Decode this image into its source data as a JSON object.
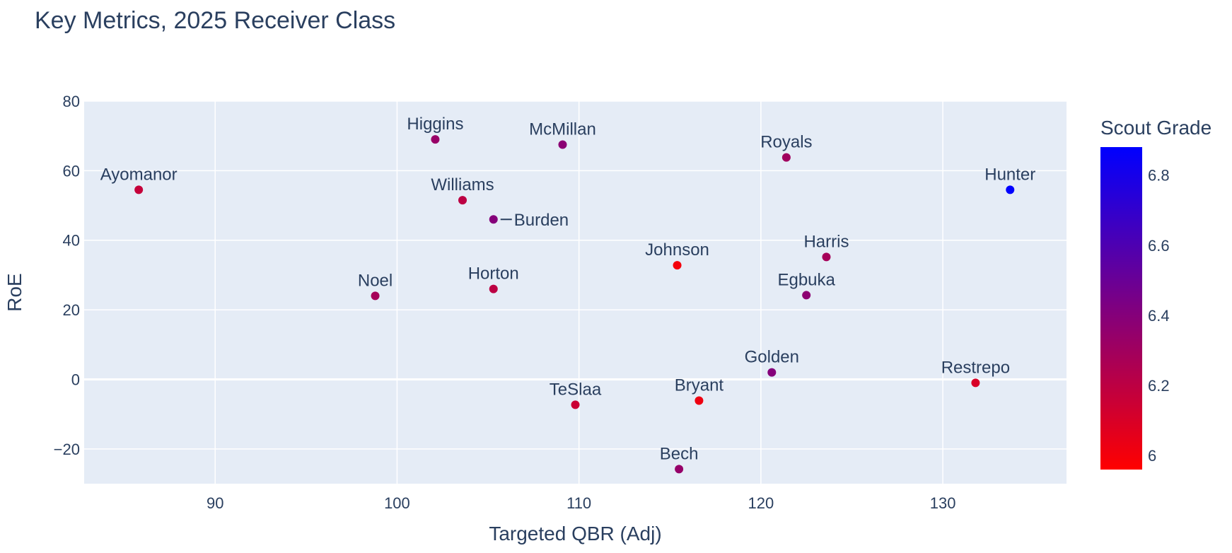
{
  "chart_data": {
    "type": "scatter",
    "title": "Key Metrics, 2025 Receiver Class",
    "xlabel": "Targeted QBR (Adj)",
    "ylabel": "RoE",
    "xlim": [
      82.8,
      136.8
    ],
    "ylim": [
      -30,
      80
    ],
    "x_ticks": [
      90,
      100,
      110,
      120,
      130
    ],
    "y_ticks": [
      -20,
      0,
      20,
      40,
      60,
      80
    ],
    "grid": true,
    "colorbar": {
      "title": "Scout Grade",
      "range": [
        5.96,
        6.88
      ],
      "ticks": [
        6,
        6.2,
        6.4,
        6.6,
        6.8
      ],
      "color_low": "#ff0000",
      "color_high": "#0000ff"
    },
    "points": [
      {
        "label": "Ayomanor",
        "x": 85.8,
        "y": 54.5,
        "grade": 6.17,
        "label_pos": "top"
      },
      {
        "label": "Higgins",
        "x": 102.1,
        "y": 69,
        "grade": 6.33,
        "label_pos": "top"
      },
      {
        "label": "McMillan",
        "x": 109.1,
        "y": 67.5,
        "grade": 6.38,
        "label_pos": "top"
      },
      {
        "label": "Royals",
        "x": 121.4,
        "y": 63.8,
        "grade": 6.3,
        "label_pos": "top"
      },
      {
        "label": "Hunter",
        "x": 133.7,
        "y": 54.5,
        "grade": 6.88,
        "label_pos": "top"
      },
      {
        "label": "Williams",
        "x": 103.6,
        "y": 51.5,
        "grade": 6.2,
        "label_pos": "top"
      },
      {
        "label": "Burden",
        "x": 105.3,
        "y": 46,
        "grade": 6.4,
        "label_pos": "right"
      },
      {
        "label": "Johnson",
        "x": 115.4,
        "y": 32.8,
        "grade": 6.0,
        "label_pos": "top"
      },
      {
        "label": "Harris",
        "x": 123.6,
        "y": 35.2,
        "grade": 6.28,
        "label_pos": "top"
      },
      {
        "label": "Noel",
        "x": 98.8,
        "y": 24,
        "grade": 6.28,
        "label_pos": "top"
      },
      {
        "label": "Horton",
        "x": 105.3,
        "y": 26,
        "grade": 6.2,
        "label_pos": "top"
      },
      {
        "label": "Egbuka",
        "x": 122.5,
        "y": 24.2,
        "grade": 6.37,
        "label_pos": "top"
      },
      {
        "label": "Golden",
        "x": 120.6,
        "y": 2,
        "grade": 6.4,
        "label_pos": "top"
      },
      {
        "label": "Restrepo",
        "x": 131.8,
        "y": -1,
        "grade": 6.1,
        "label_pos": "top"
      },
      {
        "label": "TeSlaa",
        "x": 109.8,
        "y": -7.3,
        "grade": 6.15,
        "label_pos": "top"
      },
      {
        "label": "Bryant",
        "x": 116.6,
        "y": -6.1,
        "grade": 6.02,
        "label_pos": "top"
      },
      {
        "label": "Bech",
        "x": 115.5,
        "y": -25.8,
        "grade": 6.34,
        "label_pos": "top"
      }
    ]
  }
}
